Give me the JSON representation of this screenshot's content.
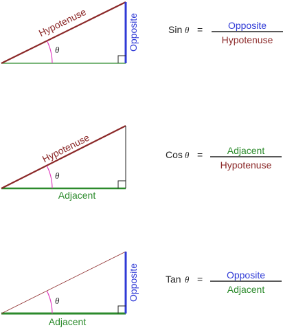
{
  "colors": {
    "opposite": "#2f3ad6",
    "hypotenuse": "#8b2828",
    "adjacent": "#2b8a2b",
    "angle_arc": "#e040c0",
    "right_angle": "#222222",
    "text": "#222222"
  },
  "theta_symbol": "θ",
  "equals_sign": "=",
  "panels": [
    {
      "id": "sin",
      "function": "Sin",
      "numerator": "Opposite",
      "denominator": "Hypotenuse",
      "side_labels": {
        "hypotenuse": "Hypotenuse",
        "opposite": "Opposite"
      }
    },
    {
      "id": "cos",
      "function": "Cos",
      "numerator": "Adjacent",
      "denominator": "Hypotenuse",
      "side_labels": {
        "hypotenuse": "Hypotenuse",
        "adjacent": "Adjacent"
      }
    },
    {
      "id": "tan",
      "function": "Tan",
      "numerator": "Opposite",
      "denominator": "Adjacent",
      "side_labels": {
        "opposite": "Opposite",
        "adjacent": "Adjacent"
      }
    }
  ]
}
